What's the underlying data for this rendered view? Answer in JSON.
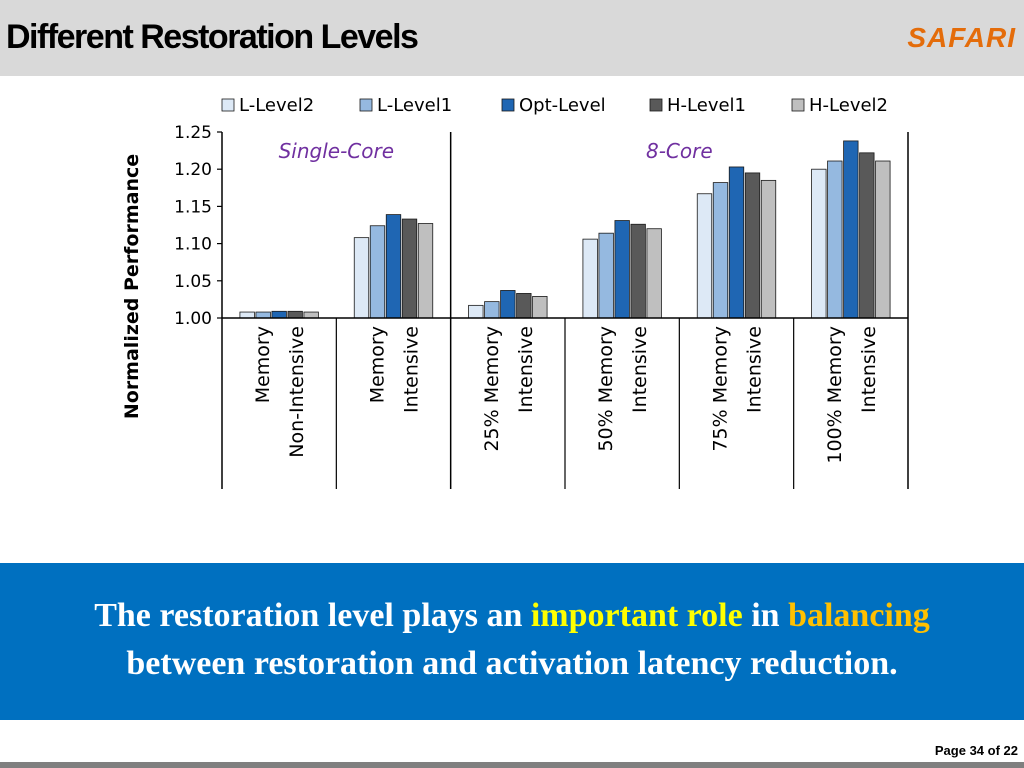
{
  "slide": {
    "title": "Different Restoration Levels",
    "logo": "SAFARI",
    "page_label": "Page 34 of 22"
  },
  "banner": {
    "line1_a": "The restoration level plays an ",
    "line1_highlight": "important role",
    "line1_b": " in ",
    "line1_highlight2": "balancing",
    "line2": "between restoration and activation latency reduction."
  },
  "colors": {
    "banner_bg": "#0070c0",
    "highlight": "#ffff00",
    "highlight2": "#ffc000",
    "logo": "#e46c0a"
  },
  "chart_data": {
    "type": "bar",
    "ylabel": "Normalized Performance",
    "ylim": [
      1.0,
      1.25
    ],
    "yticks": [
      "1.00",
      "1.05",
      "1.10",
      "1.15",
      "1.20",
      "1.25"
    ],
    "grid": false,
    "legend_position": "top",
    "panels": [
      {
        "label": "Single-Core",
        "category_count": 2
      },
      {
        "label": "8-Core",
        "category_count": 4
      }
    ],
    "categories": [
      [
        "Memory",
        "Non-Intensive"
      ],
      [
        "Memory",
        "Intensive"
      ],
      [
        "25% Memory",
        "Intensive"
      ],
      [
        "50% Memory",
        "Intensive"
      ],
      [
        "75% Memory",
        "Intensive"
      ],
      [
        "100% Memory",
        "Intensive"
      ]
    ],
    "series": [
      {
        "name": "L-Level2",
        "color": "#dde9f6",
        "values": [
          1.008,
          1.108,
          1.017,
          1.106,
          1.167,
          1.2
        ]
      },
      {
        "name": "L-Level1",
        "color": "#95b9e0",
        "values": [
          1.008,
          1.124,
          1.022,
          1.114,
          1.182,
          1.211
        ]
      },
      {
        "name": "Opt-Level",
        "color": "#1f66b3",
        "values": [
          1.009,
          1.139,
          1.037,
          1.131,
          1.203,
          1.238
        ]
      },
      {
        "name": "H-Level1",
        "color": "#595959",
        "values": [
          1.009,
          1.133,
          1.033,
          1.126,
          1.195,
          1.222
        ]
      },
      {
        "name": "H-Level2",
        "color": "#bfbfbf",
        "values": [
          1.008,
          1.127,
          1.029,
          1.12,
          1.185,
          1.211
        ]
      }
    ]
  }
}
